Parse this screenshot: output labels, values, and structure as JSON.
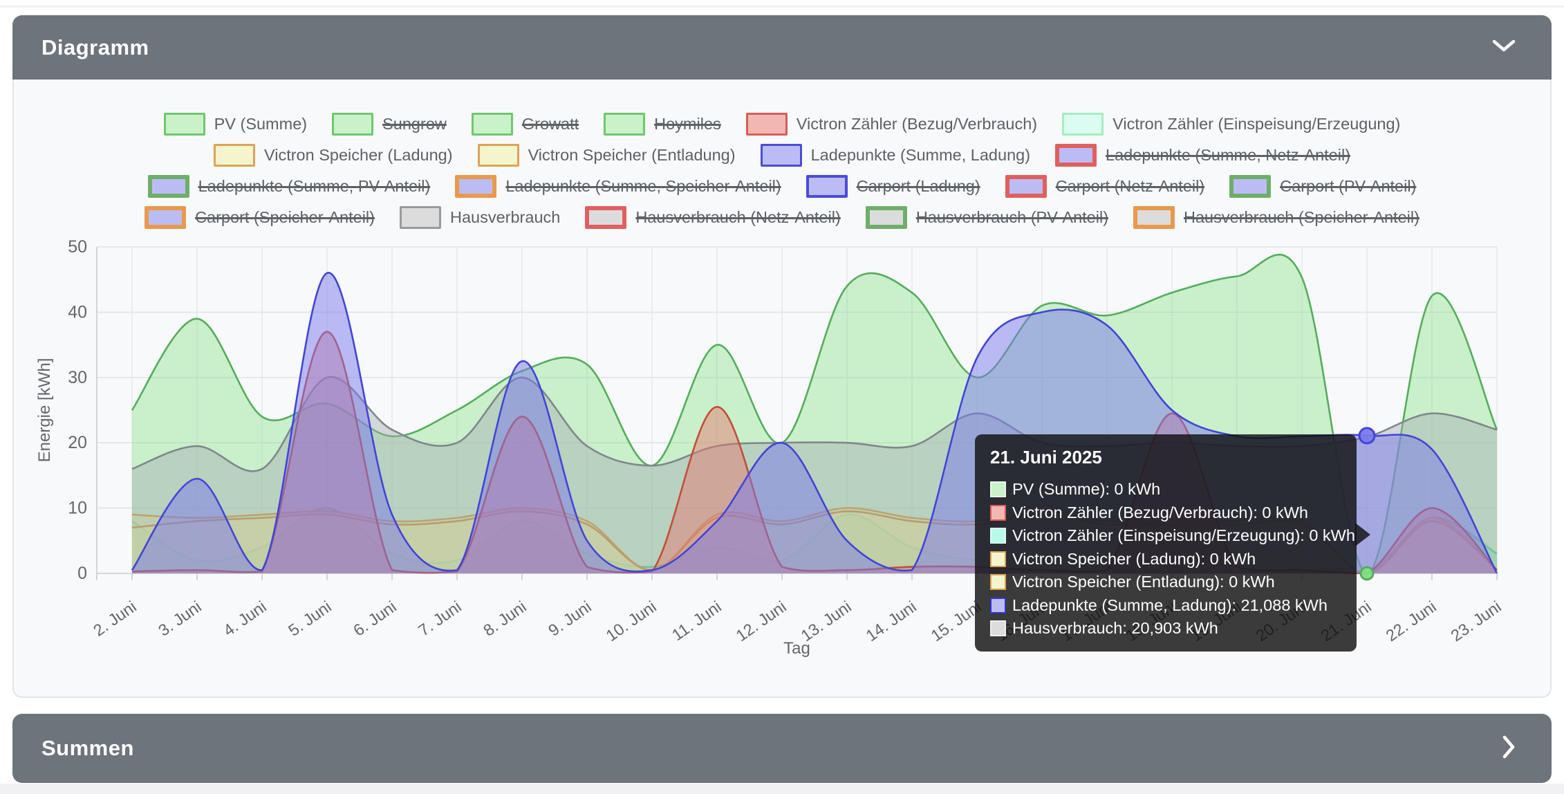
{
  "diagram_panel": {
    "title": "Diagramm",
    "collapse_icon": "chevron-down"
  },
  "summen_panel": {
    "title": "Summen",
    "expand_icon": "chevron-right"
  },
  "legend": {
    "rows": [
      [
        {
          "label": "PV (Summe)",
          "fill": "#c9f2c9",
          "border": "#71c671",
          "bw": 3,
          "struck": false
        },
        {
          "label": "Sungrow",
          "fill": "#c9f2c9",
          "border": "#71c671",
          "bw": 3,
          "struck": true
        },
        {
          "label": "Growatt",
          "fill": "#c9f2c9",
          "border": "#71c671",
          "bw": 3,
          "struck": true
        },
        {
          "label": "Hoymiles",
          "fill": "#c9f2c9",
          "border": "#71c671",
          "bw": 3,
          "struck": true
        },
        {
          "label": "Victron Zähler (Bezug/Verbrauch)",
          "fill": "#f2b7b3",
          "border": "#d65e58",
          "bw": 3,
          "struck": false
        },
        {
          "label": "Victron Zähler (Einspeisung/Erzeugung)",
          "fill": "#dcfcf2",
          "border": "#a5ecc0",
          "bw": 3,
          "struck": false
        }
      ],
      [
        {
          "label": "Victron Speicher (Ladung)",
          "fill": "#f4f4cd",
          "border": "#dca455",
          "bw": 3,
          "struck": false
        },
        {
          "label": "Victron Speicher (Entladung)",
          "fill": "#f4f4cd",
          "border": "#dca455",
          "bw": 3,
          "struck": false
        },
        {
          "label": "Ladepunkte (Summe, Ladung)",
          "fill": "#bcbcf4",
          "border": "#4b4bd8",
          "bw": 3,
          "struck": false
        },
        {
          "label": "Ladepunkte (Summe, Netz-Anteil)",
          "fill": "#bcbcf4",
          "border": "#e06060",
          "bw": 6,
          "struck": true
        }
      ],
      [
        {
          "label": "Ladepunkte (Summe, PV-Anteil)",
          "fill": "#bcbcf4",
          "border": "#6fae6a",
          "bw": 6,
          "struck": true
        },
        {
          "label": "Ladepunkte (Summe, Speicher-Anteil)",
          "fill": "#bcbcf4",
          "border": "#e9994d",
          "bw": 6,
          "struck": true
        },
        {
          "label": "Carport (Ladung)",
          "fill": "#bcbcf4",
          "border": "#4b4bd8",
          "bw": 4,
          "struck": true
        },
        {
          "label": "Carport (Netz-Anteil)",
          "fill": "#bcbcf4",
          "border": "#e06060",
          "bw": 6,
          "struck": true
        },
        {
          "label": "Carport (PV-Anteil)",
          "fill": "#bcbcf4",
          "border": "#6fae6a",
          "bw": 6,
          "struck": true
        }
      ],
      [
        {
          "label": "Carport (Speicher-Anteil)",
          "fill": "#bcbcf4",
          "border": "#e9994d",
          "bw": 6,
          "struck": true
        },
        {
          "label": "Hausverbrauch",
          "fill": "#dcdcdc",
          "border": "#9a9a9a",
          "bw": 3,
          "struck": false
        },
        {
          "label": "Hausverbrauch (Netz-Anteil)",
          "fill": "#dcdcdc",
          "border": "#e06060",
          "bw": 6,
          "struck": true
        },
        {
          "label": "Hausverbrauch (PV-Anteil)",
          "fill": "#dcdcdc",
          "border": "#6fae6a",
          "bw": 6,
          "struck": true
        },
        {
          "label": "Hausverbrauch (Speicher-Anteil)",
          "fill": "#dcdcdc",
          "border": "#e9994d",
          "bw": 6,
          "struck": true
        }
      ]
    ]
  },
  "tooltip": {
    "title": "21. Juni 2025",
    "items": [
      {
        "label": "PV (Summe)",
        "value": "0 kWh",
        "fill": "#c9f2c9",
        "border": "#e9f8e9"
      },
      {
        "label": "Victron Zähler (Bezug/Verbrauch)",
        "value": "0 kWh",
        "fill": "#f2b7b3",
        "border": "#d65e58"
      },
      {
        "label": "Victron Zähler (Einspeisung/Erzeugung)",
        "value": "0 kWh",
        "fill": "#b8fbe8",
        "border": "#d9fff5"
      },
      {
        "label": "Victron Speicher (Ladung)",
        "value": "0 kWh",
        "fill": "#f4f4cd",
        "border": "#dca455"
      },
      {
        "label": "Victron Speicher (Entladung)",
        "value": "0 kWh",
        "fill": "#f4f4cd",
        "border": "#dca455"
      },
      {
        "label": "Ladepunkte (Summe, Ladung)",
        "value": "21,088 kWh",
        "fill": "#bcbcf4",
        "border": "#3232cc"
      },
      {
        "label": "Hausverbrauch",
        "value": "20,903 kWh",
        "fill": "#dcdcdc",
        "border": "#f0f0f0"
      }
    ]
  },
  "chart_data": {
    "type": "area",
    "title": "",
    "xlabel": "Tag",
    "ylabel": "Energie [kWh]",
    "ylim": [
      0,
      50
    ],
    "yticks": [
      0,
      10,
      20,
      30,
      40,
      50
    ],
    "grid": true,
    "legend_position": "top",
    "x_labels": [
      "2. Juni",
      "3. Juni",
      "4. Juni",
      "5. Juni",
      "6. Juni",
      "7. Juni",
      "8. Juni",
      "9. Juni",
      "10. Juni",
      "11. Juni",
      "12. Juni",
      "13. Juni",
      "14. Juni",
      "15. Juni",
      "16. Juni",
      "17. Juni",
      "18. Juni",
      "19. Juni",
      "20. Juni",
      "21. Juni",
      "22. Juni",
      "23. Juni"
    ],
    "series": [
      {
        "name": "PV (Summe)",
        "stroke": "#55ac5d",
        "fill": "rgba(125,224,125,0.38)",
        "values": [
          25,
          39,
          24,
          26,
          21,
          25,
          31,
          32,
          16.5,
          35,
          20,
          44,
          43,
          30,
          41,
          39.5,
          43,
          45.5,
          45.3,
          0,
          42.5,
          22
        ]
      },
      {
        "name": "Victron Zähler (Bezug/Verbrauch)",
        "stroke": "#c14f38",
        "fill": "rgba(232,116,108,0.45)",
        "values": [
          0.3,
          0.5,
          0.3,
          37,
          0.5,
          0.3,
          24,
          1,
          0.3,
          25.5,
          1,
          0.5,
          1,
          1,
          0.5,
          0.5,
          24.5,
          1,
          0.5,
          0,
          10,
          0.5
        ]
      },
      {
        "name": "Victron Zähler (Einspeisung/Erzeugung)",
        "stroke": "#57d08b",
        "fill": "rgba(110,235,160,0.5)",
        "values": [
          8,
          2,
          4,
          10,
          3,
          2,
          8,
          3,
          1,
          4,
          2,
          9,
          4,
          2,
          3,
          2,
          2,
          3,
          2,
          0,
          8.5,
          3
        ]
      },
      {
        "name": "Victron Speicher (Ladung)",
        "stroke": "#cf9b3f",
        "fill": "rgba(228,228,140,0.5)",
        "values": [
          9,
          8.5,
          9,
          9.5,
          8,
          8.5,
          10,
          8,
          0.5,
          9,
          8,
          10,
          8.5,
          8,
          9.5,
          8,
          8,
          8,
          8,
          0,
          8.5,
          0.5
        ]
      },
      {
        "name": "Victron Speicher (Entladung)",
        "stroke": "#c98f35",
        "fill": "rgba(238,238,150,0.5)",
        "values": [
          7,
          8,
          8.5,
          9,
          7.5,
          8,
          9.5,
          7.5,
          0.5,
          8.5,
          7.5,
          9.5,
          8,
          7.5,
          9,
          7.5,
          7.5,
          7.5,
          7.5,
          0,
          8,
          0.5
        ]
      },
      {
        "name": "Ladepunkte (Summe, Ladung)",
        "stroke": "#4245d6",
        "fill": "rgba(122,122,235,0.5)",
        "values": [
          0.5,
          14.5,
          0.5,
          46,
          9,
          0.5,
          32.5,
          5,
          0.5,
          8,
          20,
          5,
          0.5,
          33,
          40,
          38,
          25,
          21,
          21,
          21.088,
          19,
          0
        ]
      },
      {
        "name": "Hausverbrauch",
        "stroke": "#80878d",
        "fill": "rgba(165,172,177,0.45)",
        "values": [
          16,
          19.5,
          16,
          30,
          22,
          20,
          30,
          19.5,
          16.5,
          19.5,
          20,
          20,
          19.5,
          24.5,
          20,
          19.5,
          20,
          19.5,
          19.5,
          20.903,
          24.5,
          22
        ]
      }
    ],
    "draw_order": [
      0,
      2,
      3,
      4,
      6,
      1,
      5
    ],
    "markers": [
      {
        "series": 5,
        "x_index": 19,
        "value": 21.088,
        "r": 11
      },
      {
        "series": 0,
        "x_index": 19,
        "value": 0,
        "r": 9
      }
    ]
  }
}
